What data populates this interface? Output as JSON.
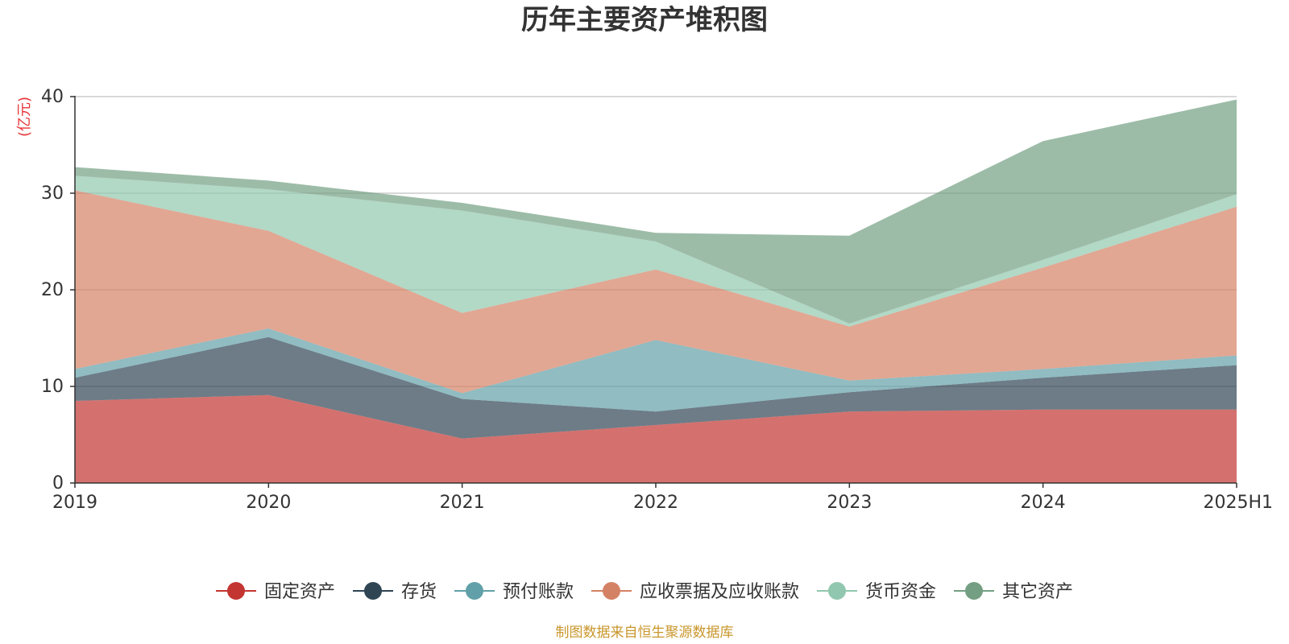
{
  "chart_data": {
    "type": "area",
    "stacked": true,
    "title": "历年主要资产堆积图",
    "ylabel": "(亿元)",
    "xlabel": "",
    "ylim": [
      0,
      40
    ],
    "y_ticks": [
      "0",
      "10",
      "20",
      "30",
      "40"
    ],
    "categories": [
      "2019",
      "2020",
      "2021",
      "2022",
      "2023",
      "2024",
      "2025H1"
    ],
    "series": [
      {
        "name": "固定资产",
        "color": "#c23531",
        "values": [
          8.5,
          9.1,
          4.6,
          6.0,
          7.4,
          7.6,
          7.6
        ]
      },
      {
        "name": "存货",
        "color": "#2f4554",
        "values": [
          2.4,
          6.0,
          4.1,
          1.4,
          2.0,
          3.3,
          4.6
        ]
      },
      {
        "name": "预付账款",
        "color": "#61a0a8",
        "values": [
          0.9,
          0.9,
          0.6,
          7.4,
          1.2,
          0.9,
          1.0
        ]
      },
      {
        "name": "应收票据及应收账款",
        "color": "#d48265",
        "values": [
          18.5,
          10.1,
          8.3,
          7.3,
          5.6,
          10.5,
          15.4
        ]
      },
      {
        "name": "货币资金",
        "color": "#91c7ae",
        "values": [
          1.5,
          4.3,
          10.6,
          2.9,
          0.3,
          0.8,
          1.3
        ]
      },
      {
        "name": "其它资产",
        "color": "#749f83",
        "values": [
          0.9,
          0.9,
          0.8,
          0.9,
          9.1,
          12.3,
          9.8
        ]
      }
    ],
    "legend_position": "bottom-center",
    "grid": true
  },
  "source_text": "制图数据来自恒生聚源数据库"
}
